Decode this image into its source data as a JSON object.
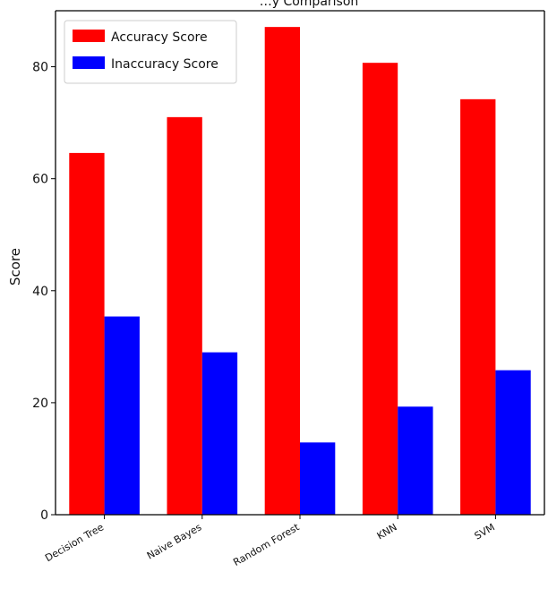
{
  "chart_data": {
    "type": "bar",
    "title": "…y Comparison",
    "xlabel": "",
    "ylabel": "Score",
    "categories": [
      "Decision Tree",
      "Naive Bayes",
      "Random Forest",
      "KNN",
      "SVM"
    ],
    "series": [
      {
        "name": "Accuracy Score",
        "color": "#ff0000",
        "values": [
          64.6,
          71.0,
          87.1,
          80.7,
          74.2
        ]
      },
      {
        "name": "Inaccuracy Score",
        "color": "#0000ff",
        "values": [
          35.4,
          29.0,
          12.9,
          19.3,
          25.8
        ]
      }
    ],
    "ylim": [
      0,
      90
    ],
    "yticks": [
      0,
      20,
      40,
      60,
      80
    ],
    "grid": false,
    "legend_position": "top-left"
  }
}
